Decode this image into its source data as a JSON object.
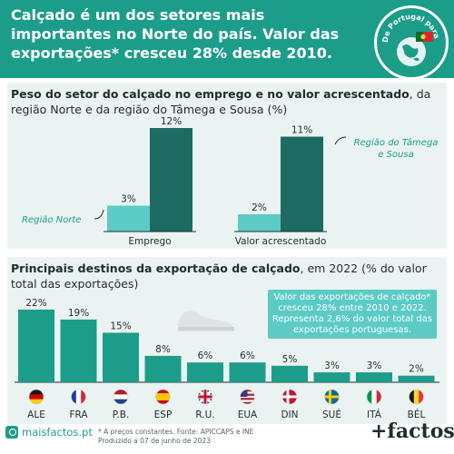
{
  "header": {
    "title": "Calçado é um dos setores mais importantes no Norte do país. Valor das exportações* cresceu 28% desde 2010.",
    "badge_text": "De Portugal para o Mundo"
  },
  "panel1": {
    "title_bold": "Peso do setor do calçado no emprego e no valor acrescentado",
    "title_rest": ", da região Norte e da região do Tâmega e Sousa (%)",
    "label_norte": "Região Norte",
    "label_tamega": "Região do Tâmega e Sousa"
  },
  "panel2": {
    "title_bold": "Principais destinos da exportação de calçado",
    "title_rest": ", em 2022 (% do valor total das exportações)",
    "note": "Valor das exportações de calçado* cresceu 28% entre 2010 e 2022. Representa 2,6% do valor total das exportações portuguesas."
  },
  "chart_data": [
    {
      "type": "bar",
      "categories": [
        "Emprego",
        "Valor acrescentado"
      ],
      "series": [
        {
          "name": "Região Norte",
          "values": [
            3,
            2
          ],
          "labels": [
            "3%",
            "2%"
          ],
          "color": "#5ccbc6"
        },
        {
          "name": "Região do Tâmega e Sousa",
          "values": [
            12,
            11
          ],
          "labels": [
            "12%",
            "11%"
          ],
          "color": "#1e6b63"
        }
      ],
      "ylim": [
        0,
        12
      ]
    },
    {
      "type": "bar",
      "categories": [
        "ALE",
        "FRA",
        "P.B.",
        "ESP",
        "R.U.",
        "EUA",
        "DIN",
        "SUÉ",
        "ITÁ",
        "BÉL"
      ],
      "values": [
        22,
        19,
        15,
        8,
        6,
        6,
        5,
        3,
        3,
        2
      ],
      "labels": [
        "22%",
        "19%",
        "15%",
        "8%",
        "6%",
        "6%",
        "5%",
        "3%",
        "3%",
        "2%"
      ],
      "flags": [
        "germany-flag",
        "france-flag",
        "netherlands-flag",
        "spain-flag",
        "uk-flag",
        "usa-flag",
        "denmark-flag",
        "sweden-flag",
        "italy-flag",
        "belgium-flag"
      ],
      "color": "#1c9d8a",
      "ylim": [
        0,
        22
      ]
    }
  ],
  "footer": {
    "site": "maisfactos.pt",
    "note_line1": "* A preços constantes. Fonte: APICCAPS e INE",
    "note_line2": "Produzido a 07 de junho de 2023",
    "brand": "+factos"
  }
}
